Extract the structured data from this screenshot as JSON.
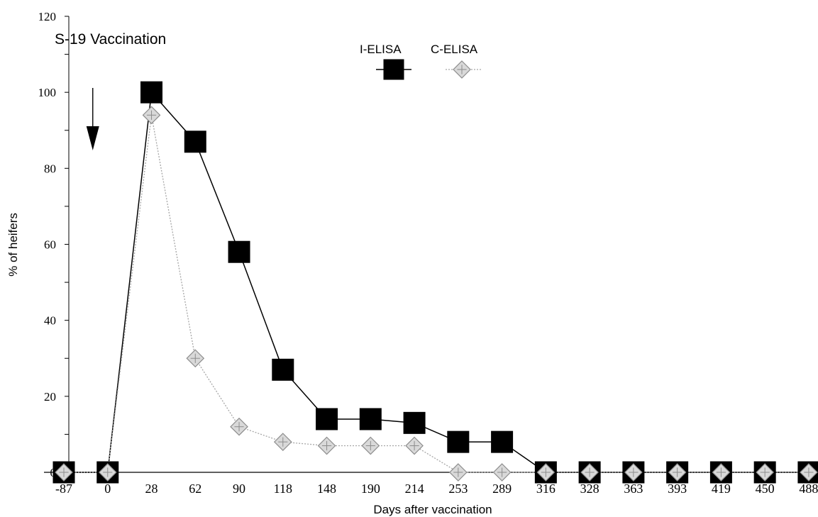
{
  "chart_data": {
    "type": "line",
    "annotation": "S-19 Vaccination",
    "xlabel": "Days after vaccination",
    "ylabel": "% of heifers",
    "categories": [
      "-87",
      "0",
      "28",
      "62",
      "90",
      "118",
      "148",
      "190",
      "214",
      "253",
      "289",
      "316",
      "328",
      "363",
      "393",
      "419",
      "450",
      "488"
    ],
    "ylim": [
      0,
      120
    ],
    "yticks": [
      "0",
      "20",
      "40",
      "60",
      "80",
      "100",
      "120"
    ],
    "grid": false,
    "legend_position": "top-center",
    "series": [
      {
        "name": "I-ELISA",
        "marker": "square",
        "color": "#000000",
        "values": [
          0,
          0,
          100,
          87,
          58,
          27,
          14,
          14,
          13,
          8,
          8,
          0,
          0,
          0,
          0,
          0,
          0,
          0
        ]
      },
      {
        "name": "C-ELISA",
        "marker": "diamond",
        "color": "#a6a6a6",
        "values": [
          0,
          0,
          94,
          30,
          12,
          8,
          7,
          7,
          7,
          0,
          0,
          0,
          0,
          0,
          0,
          0,
          0,
          0
        ]
      }
    ],
    "arrow_at": "0"
  }
}
